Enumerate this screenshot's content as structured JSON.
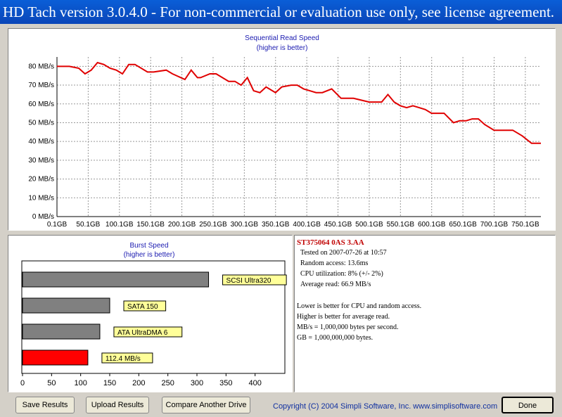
{
  "window": {
    "title": "HD Tach version 3.0.4.0  - For non-commercial or evaluation use only, see license agreement."
  },
  "read_chart": {
    "title": "Sequential Read Speed",
    "subtitle": "(higher is better)",
    "line_color": "#e00000"
  },
  "burst_chart": {
    "title": "Burst Speed",
    "subtitle": "(higher is better)"
  },
  "info": {
    "drive": "ST375064 0AS 3.AA",
    "tested_on": "Tested on 2007-07-26 at 10:57",
    "random_access": "Random access: 13.6ms",
    "cpu": "CPU utilization: 8% (+/- 2%)",
    "avg_read": "Average read: 66.9 MB/s",
    "note1": "Lower is better for CPU and random access.",
    "note2": "Higher is better for average read.",
    "note3": "MB/s = 1,000,000 bytes per second.",
    "note4": "GB = 1,000,000,000 bytes."
  },
  "buttons": {
    "save": "Save Results",
    "upload": "Upload Results",
    "compare": "Compare Another Drive",
    "done": "Done"
  },
  "copyright": "Copyright (C) 2004 Simpli Software, Inc. www.simplisoftware.com",
  "chart_data": [
    {
      "type": "line",
      "title": "Sequential Read Speed",
      "subtitle": "(higher is better)",
      "ylim": [
        0,
        85
      ],
      "xlim": [
        0.1,
        775
      ],
      "y_ticks": [
        0,
        10,
        20,
        30,
        40,
        50,
        60,
        70,
        80
      ],
      "y_tick_labels": [
        "0 MB/s",
        "10 MB/s",
        "20 MB/s",
        "30 MB/s",
        "40 MB/s",
        "50 MB/s",
        "60 MB/s",
        "70 MB/s",
        "80 MB/s"
      ],
      "x_ticks": [
        0.1,
        50.1,
        100.1,
        150.1,
        200.1,
        250.1,
        300.1,
        350.1,
        400.1,
        450.1,
        500.1,
        550.1,
        600.1,
        650.1,
        700.1,
        750.1
      ],
      "x_tick_labels": [
        "0.1GB",
        "50.1GB",
        "100.1GB",
        "150.1GB",
        "200.1GB",
        "250.1GB",
        "300.1GB",
        "350.1GB",
        "400.1GB",
        "450.1GB",
        "500.1GB",
        "550.1GB",
        "600.1GB",
        "650.1GB",
        "700.1GB",
        "750.1GB"
      ],
      "grid": true,
      "x": [
        0,
        20,
        35,
        45,
        55,
        65,
        75,
        85,
        95,
        105,
        115,
        125,
        145,
        155,
        175,
        185,
        205,
        215,
        225,
        230,
        245,
        255,
        275,
        285,
        295,
        305,
        315,
        325,
        335,
        340,
        350,
        360,
        375,
        385,
        395,
        405,
        415,
        425,
        440,
        455,
        465,
        475,
        500,
        520,
        530,
        540,
        550,
        560,
        570,
        580,
        590,
        600,
        620,
        635,
        645,
        655,
        665,
        675,
        685,
        700,
        710,
        730,
        745,
        760,
        775
      ],
      "y": [
        80,
        80,
        79,
        76,
        78,
        82,
        81,
        79,
        78,
        76,
        81,
        81,
        77,
        77,
        78,
        76,
        73,
        78,
        74,
        74,
        76,
        76,
        72,
        72,
        70,
        74,
        67,
        66,
        69,
        68,
        66,
        69,
        70,
        70,
        68,
        67,
        66,
        66,
        68,
        63,
        63,
        63,
        61,
        61,
        65,
        61,
        59,
        58,
        59,
        58,
        57,
        55,
        55,
        50,
        51,
        51,
        52,
        52,
        49,
        46,
        46,
        46,
        43,
        39,
        39
      ]
    },
    {
      "type": "bar",
      "orientation": "horizontal",
      "title": "Burst Speed",
      "subtitle": "(higher is better)",
      "xlim": [
        0,
        450
      ],
      "x_ticks": [
        0,
        50,
        100,
        150,
        200,
        250,
        300,
        350,
        400
      ],
      "categories": [
        "SCSI Ultra320",
        "SATA 150",
        "ATA UltraDMA 6",
        "112.4 MB/s"
      ],
      "values": [
        320,
        150,
        133,
        112.4
      ],
      "colors": [
        "#808080",
        "#808080",
        "#808080",
        "#ff0000"
      ],
      "label_bg": "#ffff99"
    }
  ]
}
